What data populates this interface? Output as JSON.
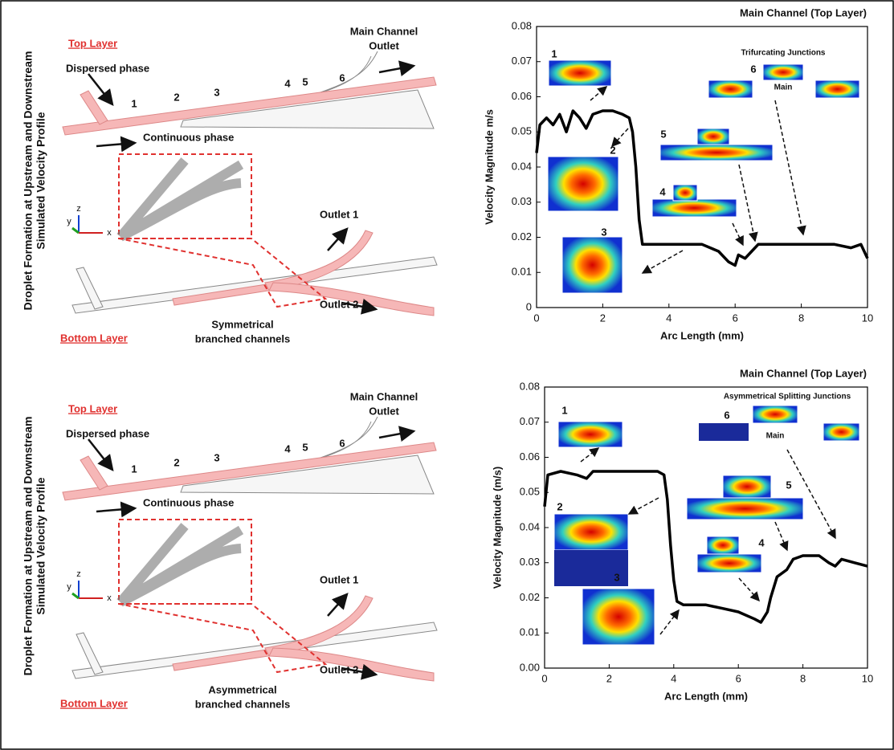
{
  "diagrams": [
    {
      "side_label": [
        "Droplet Formation at Upstream and Downstream",
        "Simulated Velocity Profile"
      ],
      "top_layer": "Top Layer",
      "main_outlet": [
        "Main Channel",
        "Outlet"
      ],
      "dispersed": "Dispersed phase",
      "markers": [
        "1",
        "2",
        "3",
        "4",
        "5",
        "6"
      ],
      "continuous": "Continuous phase",
      "outlet1": "Outlet 1",
      "outlet2": "Outlet 2",
      "bottom_layer": "Bottom Layer",
      "channels": [
        "Symmetrical",
        "branched channels"
      ],
      "axes": [
        "y",
        "z",
        "x"
      ]
    },
    {
      "side_label": [
        "Droplet Formation at Upstream and Downstream",
        "Simulated Velocity Profile"
      ],
      "top_layer": "Top Layer",
      "main_outlet": [
        "Main Channel",
        "Outlet"
      ],
      "dispersed": "Dispersed phase",
      "markers": [
        "1",
        "2",
        "3",
        "4",
        "5",
        "6"
      ],
      "continuous": "Continuous phase",
      "outlet1": "Outlet 1",
      "outlet2": "Outlet 2",
      "bottom_layer": "Bottom Layer",
      "channels": [
        "Asymmetrical",
        "branched channels"
      ],
      "axes": [
        "y",
        "z",
        "x"
      ]
    }
  ],
  "chart_data": [
    {
      "type": "line",
      "title": "Main Channel (Top Layer)",
      "ylabel": "Velocity Magnitude m/s",
      "xlabel": "Arc Length (mm)",
      "x": [
        0,
        0.1,
        0.3,
        0.5,
        0.7,
        0.9,
        1.1,
        1.3,
        1.5,
        1.7,
        2.0,
        2.3,
        2.6,
        2.8,
        2.9,
        3.0,
        3.1,
        3.2,
        3.5,
        4,
        4.5,
        5,
        5.5,
        5.8,
        6.0,
        6.1,
        6.3,
        6.5,
        6.7,
        7,
        8,
        9,
        9.5,
        9.8,
        10
      ],
      "values": [
        0.044,
        0.052,
        0.054,
        0.052,
        0.055,
        0.05,
        0.056,
        0.054,
        0.051,
        0.055,
        0.056,
        0.056,
        0.055,
        0.054,
        0.05,
        0.04,
        0.025,
        0.018,
        0.018,
        0.018,
        0.018,
        0.018,
        0.016,
        0.013,
        0.012,
        0.015,
        0.014,
        0.016,
        0.018,
        0.018,
        0.018,
        0.018,
        0.017,
        0.018,
        0.014
      ],
      "color": "#000000",
      "xlim": [
        0,
        10
      ],
      "xticks": [
        0,
        2,
        4,
        6,
        8,
        10
      ],
      "ylim": [
        0,
        0.08
      ],
      "yticks": [
        0,
        0.01,
        0.02,
        0.03,
        0.04,
        0.05,
        0.06,
        0.07,
        0.08
      ],
      "annotations": [
        "1",
        "2",
        "3",
        "4",
        "5",
        "6",
        "Trifurcating Junctions",
        "Main"
      ]
    },
    {
      "type": "line",
      "title": "Main Channel (Top Layer)",
      "ylabel": "Velocity Magnitude (m/s)",
      "xlabel": "Arc Length (mm)",
      "x": [
        0,
        0.1,
        0.5,
        1,
        1.3,
        1.5,
        2,
        2.5,
        3,
        3.5,
        3.7,
        3.8,
        3.9,
        4.0,
        4.1,
        4.3,
        5,
        5.5,
        6,
        6.5,
        6.7,
        6.9,
        7.0,
        7.2,
        7.5,
        7.7,
        8,
        8.5,
        8.8,
        9,
        9.2,
        9.6,
        10
      ],
      "values": [
        0.046,
        0.055,
        0.056,
        0.055,
        0.054,
        0.056,
        0.056,
        0.056,
        0.056,
        0.056,
        0.055,
        0.048,
        0.035,
        0.025,
        0.019,
        0.018,
        0.018,
        0.017,
        0.016,
        0.014,
        0.013,
        0.016,
        0.02,
        0.026,
        0.028,
        0.031,
        0.032,
        0.032,
        0.03,
        0.029,
        0.031,
        0.03,
        0.029
      ],
      "color": "#000000",
      "xlim": [
        0,
        10
      ],
      "xticks": [
        0,
        2,
        4,
        6,
        8,
        10
      ],
      "ylim": [
        0,
        0.08
      ],
      "yticks": [
        {
          "value": 0,
          "label": "0.00"
        },
        0.01,
        0.02,
        0.03,
        0.04,
        0.05,
        0.06,
        0.07,
        0.08
      ],
      "annotations": [
        "1",
        "2",
        "3",
        "4",
        "5",
        "6",
        "Asymmetrical Splitting Junctions",
        "Main"
      ]
    }
  ]
}
